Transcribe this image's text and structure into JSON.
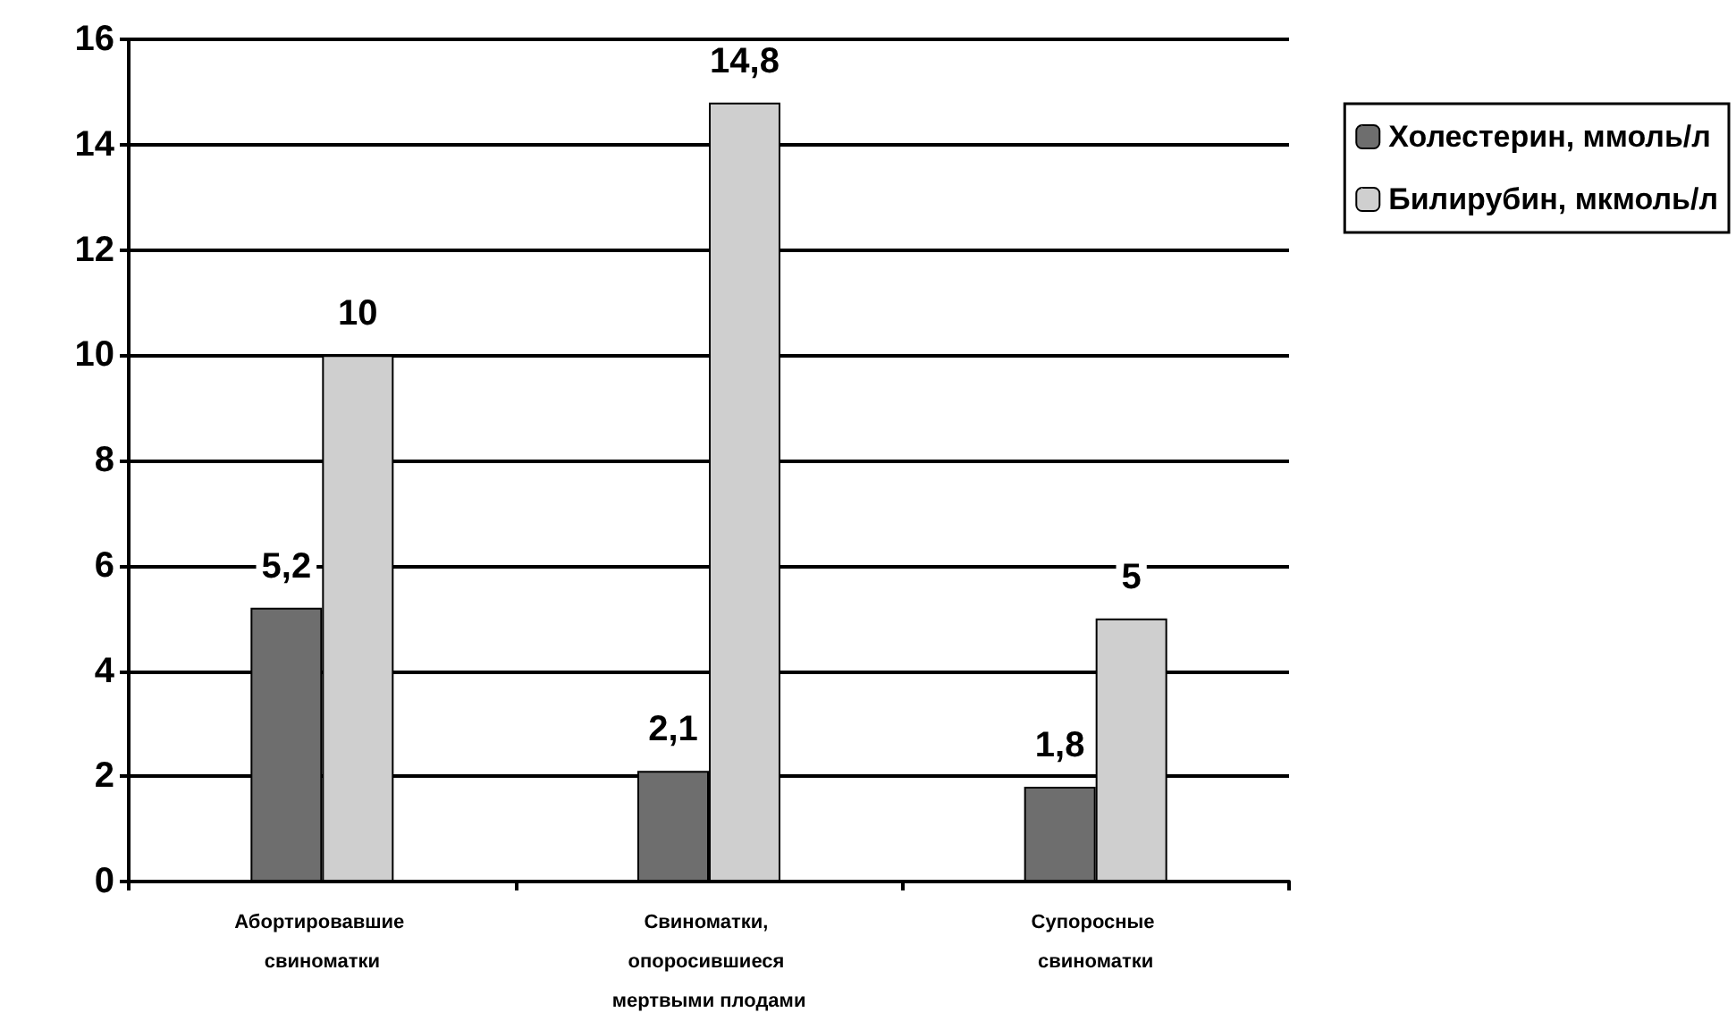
{
  "chart_data": {
    "type": "bar",
    "categories": [
      "Абортировавшие свиноматки",
      "Свиноматки, опоросившиеся мертвыми плодами",
      "Супоросные свиноматки"
    ],
    "series": [
      {
        "name": "Холестерин, ммоль/л",
        "color": "#6e6e6e",
        "values": [
          5.2,
          2.1,
          1.8
        ],
        "value_labels": [
          "5,2",
          "2,1",
          "1,8"
        ]
      },
      {
        "name": "Билирубин, мкмоль/л",
        "color": "#cfcfcf",
        "values": [
          10,
          14.8,
          5
        ],
        "value_labels": [
          "10",
          "14,8",
          "5"
        ]
      }
    ],
    "ylim": [
      0,
      16
    ],
    "yticks": [
      0,
      2,
      4,
      6,
      8,
      10,
      12,
      14,
      16
    ],
    "grid": "y",
    "legend": "top right"
  }
}
